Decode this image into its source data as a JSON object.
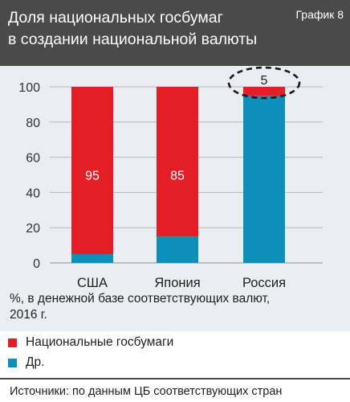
{
  "header": {
    "title_line1": "Доля национальных госбумаг",
    "title_line2": "в создании национальной валюты",
    "tag": "График 8"
  },
  "chart_data": {
    "type": "bar",
    "stacked": true,
    "categories": [
      "США",
      "Япония",
      "Россия"
    ],
    "series": [
      {
        "name": "Др.",
        "values": [
          5,
          15,
          95
        ],
        "color": "#0c8fba"
      },
      {
        "name": "Национальные госбумаги",
        "values": [
          95,
          85,
          5
        ],
        "color": "#e31e26"
      }
    ],
    "data_labels": [
      "95",
      "85",
      "5"
    ],
    "y_ticks": [
      "0",
      "20",
      "40",
      "60",
      "80",
      "100"
    ],
    "ylim": [
      0,
      100
    ],
    "grid": true,
    "highlight": "dashed ellipse around the Russia value of 5"
  },
  "note_line1": "%, в денежной базе соответствующих валют,",
  "note_line2": "2016 г.",
  "legend": [
    {
      "label": "Национальные госбумаги",
      "color": "#e31e26"
    },
    {
      "label": "Др.",
      "color": "#0c8fba"
    }
  ],
  "source": "Источники: по данным ЦБ соответствующих стран"
}
